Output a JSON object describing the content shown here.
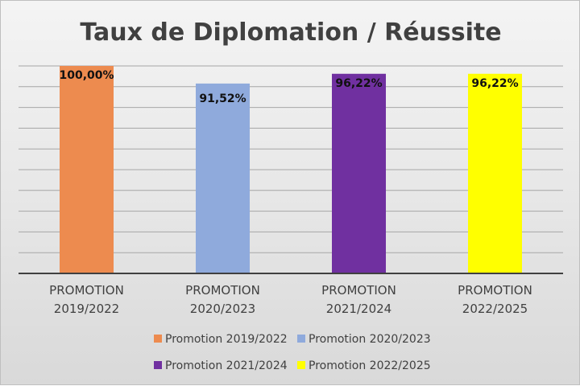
{
  "chart_data": {
    "type": "bar",
    "title": "Taux de Diplomation / Réussite",
    "categories": [
      [
        "PROMOTION",
        "2019/2022"
      ],
      [
        "PROMOTION",
        "2020/2023"
      ],
      [
        "PROMOTION",
        "2021/2024"
      ],
      [
        "PROMOTION",
        "2022/2025"
      ]
    ],
    "series": [
      {
        "name": "Promotion 2019/2022",
        "value": 100.0,
        "label": "100,00%",
        "color": "#ed8b4f"
      },
      {
        "name": "Promotion 2020/2023",
        "value": 91.52,
        "label": "91,52%",
        "color": "#8faadc"
      },
      {
        "name": "Promotion 2021/2024",
        "value": 96.22,
        "label": "96,22%",
        "color": "#7030a0"
      },
      {
        "name": "Promotion 2022/2025",
        "value": 96.22,
        "label": "96,22%",
        "color": "#ffff00"
      }
    ],
    "xlabel": "",
    "ylabel": "",
    "grid": true,
    "legend_position": "bottom"
  }
}
